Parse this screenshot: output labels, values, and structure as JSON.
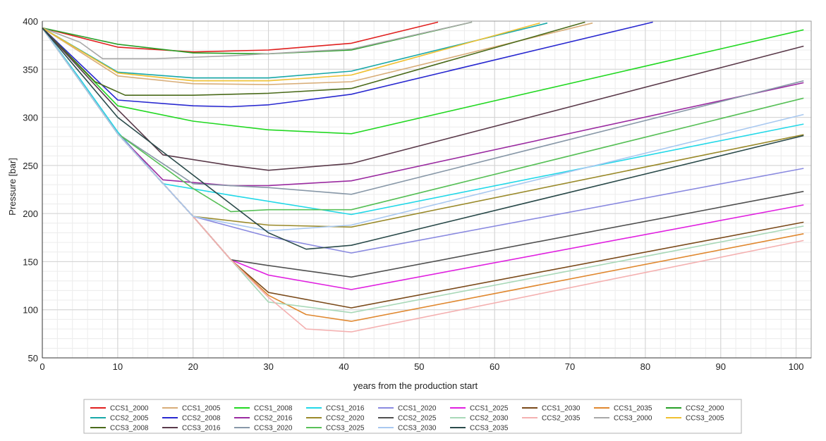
{
  "chart_data": {
    "type": "line",
    "title": "",
    "xlabel": "years from the production start",
    "ylabel": "Pressure [bar]",
    "xlim": [
      0,
      102
    ],
    "ylim": [
      50,
      400
    ],
    "xticks": [
      0,
      10,
      20,
      30,
      40,
      50,
      60,
      70,
      80,
      90,
      100
    ],
    "yticks": [
      50,
      100,
      150,
      200,
      250,
      300,
      350,
      400
    ],
    "grid": true,
    "legend_position": "bottom",
    "series": [
      {
        "name": "CCS1_2000",
        "color": "#e0201f",
        "points": [
          [
            0,
            393
          ],
          [
            10,
            373
          ],
          [
            20,
            368
          ],
          [
            30,
            370
          ],
          [
            41,
            377
          ],
          [
            52.5,
            399
          ]
        ]
      },
      {
        "name": "CCS1_2005",
        "color": "#d8ad78",
        "points": [
          [
            0,
            393
          ],
          [
            10,
            343
          ],
          [
            20,
            335
          ],
          [
            30,
            334
          ],
          [
            41,
            337
          ],
          [
            73,
            398
          ]
        ]
      },
      {
        "name": "CCS1_2008",
        "color": "#22d822",
        "points": [
          [
            0,
            393
          ],
          [
            10,
            312
          ],
          [
            20,
            296
          ],
          [
            30,
            287
          ],
          [
            41,
            283
          ],
          [
            101,
            391
          ]
        ]
      },
      {
        "name": "CCS1_2016",
        "color": "#22d8e8",
        "points": [
          [
            0,
            393
          ],
          [
            5,
            340
          ],
          [
            10,
            285
          ],
          [
            16,
            231
          ],
          [
            25,
            219
          ],
          [
            41,
            199
          ],
          [
            101,
            293
          ]
        ]
      },
      {
        "name": "CCS1_2020",
        "color": "#8a8ae0",
        "points": [
          [
            0,
            393
          ],
          [
            10,
            283
          ],
          [
            20,
            197
          ],
          [
            30,
            176
          ],
          [
            41,
            159
          ],
          [
            101,
            247
          ]
        ]
      },
      {
        "name": "CCS1_2025",
        "color": "#e020e0",
        "points": [
          [
            0,
            393
          ],
          [
            10,
            283
          ],
          [
            20,
            197
          ],
          [
            25,
            152
          ],
          [
            30,
            136
          ],
          [
            41,
            121
          ],
          [
            101,
            209
          ]
        ]
      },
      {
        "name": "CCS1_2030",
        "color": "#7a4a1a",
        "points": [
          [
            0,
            393
          ],
          [
            10,
            283
          ],
          [
            20,
            197
          ],
          [
            25,
            152
          ],
          [
            30,
            118
          ],
          [
            41,
            102
          ],
          [
            101,
            191
          ]
        ]
      },
      {
        "name": "CCS1_2035",
        "color": "#e08830",
        "points": [
          [
            0,
            393
          ],
          [
            10,
            283
          ],
          [
            20,
            197
          ],
          [
            25,
            152
          ],
          [
            30,
            115
          ],
          [
            35,
            95
          ],
          [
            41,
            88
          ],
          [
            101,
            179
          ]
        ]
      },
      {
        "name": "CCS2_2000",
        "color": "#28a028",
        "points": [
          [
            0,
            393
          ],
          [
            10,
            376
          ],
          [
            20,
            367
          ],
          [
            30,
            366
          ],
          [
            41,
            370
          ],
          [
            57,
            399
          ]
        ]
      },
      {
        "name": "CCS2_2005",
        "color": "#18a8a8",
        "points": [
          [
            0,
            393
          ],
          [
            10,
            347
          ],
          [
            20,
            341
          ],
          [
            30,
            341
          ],
          [
            41,
            348
          ],
          [
            67,
            398
          ]
        ]
      },
      {
        "name": "CCS2_2008",
        "color": "#2828d0",
        "points": [
          [
            0,
            393
          ],
          [
            10,
            318
          ],
          [
            20,
            312
          ],
          [
            25,
            311
          ],
          [
            30,
            313
          ],
          [
            41,
            324
          ],
          [
            81,
            399
          ]
        ]
      },
      {
        "name": "CCS2_2016",
        "color": "#9a2aa0",
        "points": [
          [
            0,
            393
          ],
          [
            10,
            283
          ],
          [
            16,
            235
          ],
          [
            25,
            229
          ],
          [
            30,
            229
          ],
          [
            41,
            234
          ],
          [
            101,
            336
          ]
        ]
      },
      {
        "name": "CCS2_2020",
        "color": "#9a8a2a",
        "points": [
          [
            0,
            393
          ],
          [
            10,
            283
          ],
          [
            20,
            197
          ],
          [
            30,
            188
          ],
          [
            41,
            186
          ],
          [
            101,
            282
          ]
        ]
      },
      {
        "name": "CCS2_2025",
        "color": "#505050",
        "points": [
          [
            0,
            393
          ],
          [
            10,
            283
          ],
          [
            20,
            197
          ],
          [
            25,
            152
          ],
          [
            30,
            146
          ],
          [
            41,
            134
          ],
          [
            101,
            223
          ]
        ]
      },
      {
        "name": "CCS2_2030",
        "color": "#a8d8b8",
        "points": [
          [
            0,
            393
          ],
          [
            10,
            283
          ],
          [
            20,
            197
          ],
          [
            25,
            152
          ],
          [
            30,
            108
          ],
          [
            41,
            97
          ],
          [
            101,
            187
          ]
        ]
      },
      {
        "name": "CCS2_2035",
        "color": "#f4b0b0",
        "points": [
          [
            0,
            393
          ],
          [
            10,
            283
          ],
          [
            20,
            197
          ],
          [
            25,
            152
          ],
          [
            30,
            113
          ],
          [
            35,
            80
          ],
          [
            41,
            77
          ],
          [
            101,
            172
          ]
        ]
      },
      {
        "name": "CCS3_2000",
        "color": "#a8a8a8",
        "points": [
          [
            0,
            393
          ],
          [
            5,
            378
          ],
          [
            8,
            361
          ],
          [
            15,
            361
          ],
          [
            25,
            364
          ],
          [
            41,
            371
          ],
          [
            57,
            399
          ]
        ]
      },
      {
        "name": "CCS3_2005",
        "color": "#f0c030",
        "points": [
          [
            0,
            393
          ],
          [
            10,
            346
          ],
          [
            20,
            338
          ],
          [
            30,
            338
          ],
          [
            41,
            344
          ],
          [
            66,
            398
          ]
        ]
      },
      {
        "name": "CCS3_2008",
        "color": "#4a6a1a",
        "points": [
          [
            0,
            393
          ],
          [
            7,
            337
          ],
          [
            11,
            323
          ],
          [
            20,
            323
          ],
          [
            30,
            325
          ],
          [
            41,
            330
          ],
          [
            72,
            399
          ]
        ]
      },
      {
        "name": "CCS3_2016",
        "color": "#5a3a4a",
        "points": [
          [
            0,
            393
          ],
          [
            10,
            308
          ],
          [
            16,
            261
          ],
          [
            25,
            250
          ],
          [
            30,
            245
          ],
          [
            41,
            252
          ],
          [
            101,
            374
          ]
        ]
      },
      {
        "name": "CCS3_2020",
        "color": "#8898a8",
        "points": [
          [
            0,
            393
          ],
          [
            10,
            283
          ],
          [
            20,
            231
          ],
          [
            30,
            227
          ],
          [
            41,
            220
          ],
          [
            101,
            338
          ]
        ]
      },
      {
        "name": "CCS3_2025",
        "color": "#58c058",
        "points": [
          [
            0,
            393
          ],
          [
            10,
            283
          ],
          [
            20,
            226
          ],
          [
            25,
            202
          ],
          [
            30,
            204
          ],
          [
            41,
            204
          ],
          [
            101,
            320
          ]
        ]
      },
      {
        "name": "CCS3_2030",
        "color": "#a8c8f0",
        "points": [
          [
            0,
            393
          ],
          [
            10,
            283
          ],
          [
            20,
            197
          ],
          [
            30,
            182
          ],
          [
            41,
            188
          ],
          [
            101,
            303
          ]
        ]
      },
      {
        "name": "CCS3_2035",
        "color": "#2a4a4a",
        "points": [
          [
            0,
            393
          ],
          [
            10,
            300
          ],
          [
            20,
            240
          ],
          [
            30,
            180
          ],
          [
            35,
            163
          ],
          [
            41,
            167
          ],
          [
            101,
            281
          ]
        ]
      }
    ]
  }
}
